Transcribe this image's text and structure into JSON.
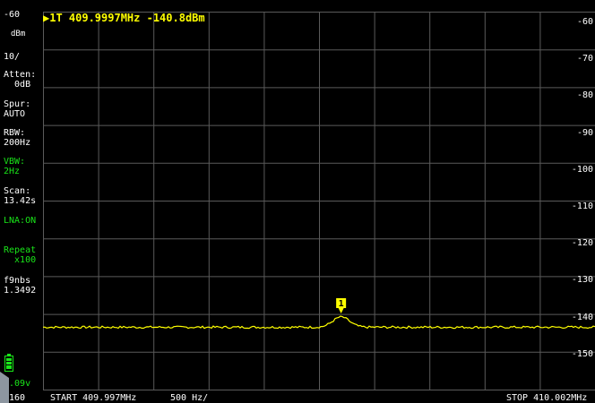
{
  "marker": {
    "readout": "▶1T 409.9997MHz -140.8dBm",
    "flag": "1"
  },
  "sidebar": {
    "ref_level": "-60",
    "unit": "dBm",
    "scale": "10/",
    "atten": "Atten:\n  0dB",
    "spur": "Spur:\nAUTO",
    "rbw": "RBW:\n200Hz",
    "vbw": "VBW:\n2Hz",
    "scan": "Scan:\n13.42s",
    "lna": "LNA:ON",
    "repeat": "Repeat\n  x100",
    "fw": "f9nbs\n1.3492",
    "battery_voltage": "4.09v",
    "bottom_level": "-160"
  },
  "footer": {
    "start": "START 409.997MHz",
    "span_per_div": "500 Hz/",
    "stop": "STOP 410.002MHz"
  },
  "y_axis_labels": [
    "-60",
    "-70",
    "-80",
    "-90",
    "-100",
    "-110",
    "-120",
    "-130",
    "-140",
    "-150"
  ],
  "colors": {
    "trace": "#ffff00",
    "grid": "#5a5a5a",
    "text": "#ffffff",
    "accent_green": "#19e619",
    "background": "#000000"
  },
  "chart_data": {
    "type": "line",
    "x_range_mhz": [
      409.997,
      410.002
    ],
    "y_range_dbm": [
      -160,
      -60
    ],
    "grid_x_divisions": 10,
    "grid_y_divisions": 10,
    "noise_floor_dbm": -143.5,
    "peak": {
      "frequency_mhz": 409.9997,
      "level_dbm": -140.8
    }
  }
}
